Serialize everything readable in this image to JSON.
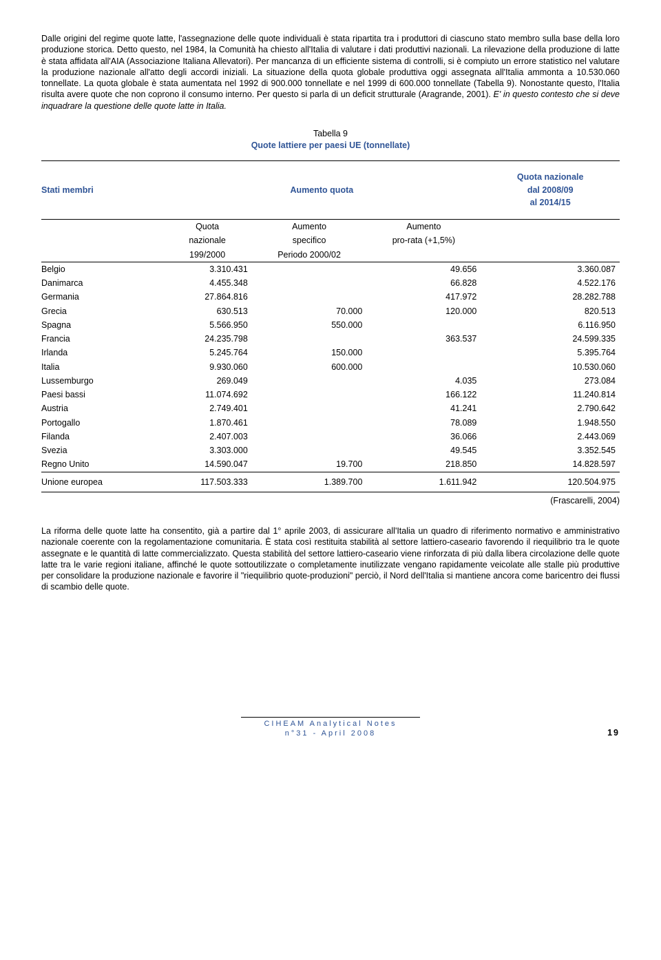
{
  "paragraphs": {
    "p1a": "Dalle origini del regime quote latte, l'assegnazione delle quote individuali è stata ripartita tra i produttori di ciascuno stato membro sulla base della loro produzione storica. Detto questo, nel 1984, la Comunità ha chiesto all'Italia di valutare i dati produttivi nazionali. La rilevazione della produzione di latte è stata affidata all'AIA (Associazione Italiana Allevatori). Per mancanza di un efficiente sistema di controlli, si è compiuto un errore statistico nel valutare la produzione nazionale all'atto degli accordi iniziali. La situazione della quota globale produttiva oggi assegnata all'Italia ammonta a 10.530.060 tonnellate. La quota globale è stata aumentata nel 1992 di 900.000 tonnellate e nel 1999 di 600.000 tonnellate (Tabella 9). Nonostante questo, l'Italia risulta avere quote che non coprono il consumo interno. Per questo si parla di un deficit strutturale (Aragrande, 2001). ",
    "p1b": "E' in questo contesto che si deve inquadrare la questione delle quote latte in Italia.",
    "p2": "La riforma delle quote latte ha consentito, già a partire dal 1° aprile 2003, di assicurare all'Italia un quadro di riferimento normativo e amministrativo nazionale coerente con la regolamentazione comunitaria. È stata così restituita stabilità al settore lattiero-caseario favorendo il riequilibrio tra le quote assegnate e le quantità di latte commercializzato. Questa stabilità del settore lattiero-caseario viene rinforzata di più dalla libera circolazione delle quote latte tra le varie regioni italiane, affinché le quote sottoutilizzate o completamente inutilizzate vengano rapidamente veicolate alle stalle più produttive per consolidare la produzione nazionale e favorire il \"riequilibrio quote-produzioni\" perciò, il Nord dell'Italia si mantiene ancora come baricentro dei flussi di scambio delle quote."
  },
  "table": {
    "caption_line1": "Tabella 9",
    "caption_line2": "Quote lattiere per paesi UE (tonnellate)",
    "header": {
      "col1": "Stati membri",
      "col2": "Aumento quota",
      "col3_l1": "Quota nazionale",
      "col3_l2": "dal 2008/09",
      "col3_l3": "al 2014/15"
    },
    "subheader": {
      "c1_l1": "Quota",
      "c1_l2": "nazionale",
      "c1_l3": "199/2000",
      "c2_l1": "Aumento",
      "c2_l2": "specifico",
      "c2_l3": "Periodo 2000/02",
      "c3_l1": "Aumento",
      "c3_l2": "pro-rata (+1,5%)"
    },
    "rows": [
      {
        "n": "Belgio",
        "a": "3.310.431",
        "b": "",
        "c": "49.656",
        "d": "3.360.087"
      },
      {
        "n": "Danimarca",
        "a": "4.455.348",
        "b": "",
        "c": "66.828",
        "d": "4.522.176"
      },
      {
        "n": "Germania",
        "a": "27.864.816",
        "b": "",
        "c": "417.972",
        "d": "28.282.788"
      },
      {
        "n": "Grecia",
        "a": "630.513",
        "b": "70.000",
        "c": "120.000",
        "d": "820.513"
      },
      {
        "n": "Spagna",
        "a": "5.566.950",
        "b": "550.000",
        "c": "",
        "d": "6.116.950"
      },
      {
        "n": "Francia",
        "a": "24.235.798",
        "b": "",
        "c": "363.537",
        "d": "24.599.335"
      },
      {
        "n": "Irlanda",
        "a": "5.245.764",
        "b": "150.000",
        "c": "",
        "d": "5.395.764"
      },
      {
        "n": "Italia",
        "a": "9.930.060",
        "b": "600.000",
        "c": "",
        "d": "10.530.060"
      },
      {
        "n": "Lussemburgo",
        "a": "269.049",
        "b": "",
        "c": "4.035",
        "d": "273.084"
      },
      {
        "n": "Paesi bassi",
        "a": "11.074.692",
        "b": "",
        "c": "166.122",
        "d": "11.240.814"
      },
      {
        "n": "Austria",
        "a": "2.749.401",
        "b": "",
        "c": "41.241",
        "d": "2.790.642"
      },
      {
        "n": "Portogallo",
        "a": "1.870.461",
        "b": "",
        "c": "78.089",
        "d": "1.948.550"
      },
      {
        "n": "Filanda",
        "a": "2.407.003",
        "b": "",
        "c": "36.066",
        "d": "2.443.069"
      },
      {
        "n": "Svezia",
        "a": "3.303.000",
        "b": "",
        "c": "49.545",
        "d": "3.352.545"
      },
      {
        "n": "Regno Unito",
        "a": "14.590.047",
        "b": "19.700",
        "c": "218.850",
        "d": "14.828.597"
      }
    ],
    "total": {
      "n": "Unione europea",
      "a": "117.503.333",
      "b": "1.389.700",
      "c": "1.611.942",
      "d": "120.504.975"
    },
    "source": "(Frascarelli, 2004)"
  },
  "footer": {
    "l1": "CIHEAM Analytical Notes",
    "l2": "n°31 - April 2008",
    "page": "19"
  }
}
